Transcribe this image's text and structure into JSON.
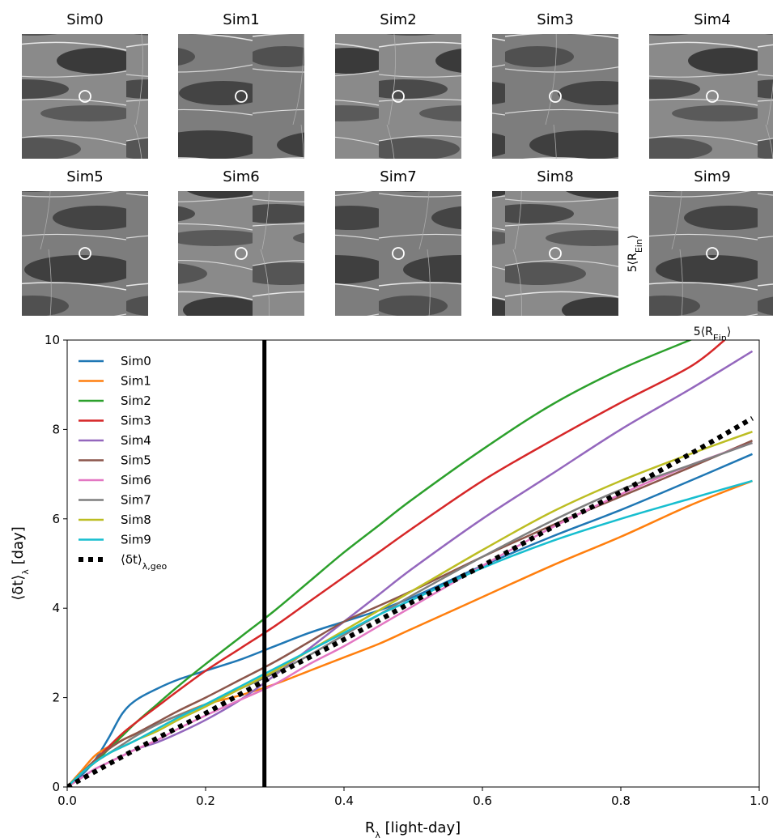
{
  "panels": {
    "titles": [
      "Sim0",
      "Sim1",
      "Sim2",
      "Sim3",
      "Sim4",
      "Sim5",
      "Sim6",
      "Sim7",
      "Sim8",
      "Sim9"
    ],
    "scale_label_vertical": "5⟨R_Ein⟩",
    "scale_label_horizontal": "5⟨R_Ein⟩"
  },
  "chart_data": {
    "type": "line",
    "xlabel": "R_λ [light-day]",
    "ylabel": "⟨δt⟩_λ [day]",
    "xlim": [
      0.0,
      1.0
    ],
    "ylim": [
      0,
      10
    ],
    "xticks": [
      "0.0",
      "0.2",
      "0.4",
      "0.6",
      "0.8",
      "1.0"
    ],
    "yticks": [
      "0",
      "2",
      "4",
      "6",
      "8",
      "10"
    ],
    "grid": false,
    "legend_position": "upper-left",
    "vline": {
      "x": 0.285,
      "color": "#000000"
    },
    "series": [
      {
        "name": "Sim0",
        "color": "#1f77b4",
        "x": [
          0,
          0.02,
          0.04,
          0.06,
          0.08,
          0.1,
          0.13,
          0.16,
          0.2,
          0.25,
          0.3,
          0.35,
          0.4,
          0.45,
          0.5,
          0.6,
          0.7,
          0.8,
          0.9,
          0.99
        ],
        "y": [
          0,
          0.25,
          0.6,
          1.1,
          1.65,
          1.95,
          2.2,
          2.4,
          2.6,
          2.85,
          3.15,
          3.45,
          3.7,
          3.95,
          4.25,
          4.95,
          5.6,
          6.2,
          6.85,
          7.45
        ]
      },
      {
        "name": "Sim1",
        "color": "#ff7f0e",
        "x": [
          0,
          0.02,
          0.04,
          0.06,
          0.08,
          0.1,
          0.13,
          0.16,
          0.2,
          0.25,
          0.3,
          0.35,
          0.4,
          0.45,
          0.5,
          0.6,
          0.7,
          0.8,
          0.9,
          0.99
        ],
        "y": [
          0,
          0.35,
          0.7,
          0.9,
          1.05,
          1.2,
          1.4,
          1.6,
          1.85,
          2.05,
          2.3,
          2.6,
          2.9,
          3.2,
          3.55,
          4.25,
          4.95,
          5.6,
          6.3,
          6.85
        ]
      },
      {
        "name": "Sim2",
        "color": "#2ca02c",
        "x": [
          0,
          0.02,
          0.04,
          0.06,
          0.08,
          0.1,
          0.13,
          0.16,
          0.2,
          0.25,
          0.3,
          0.35,
          0.4,
          0.45,
          0.5,
          0.6,
          0.7,
          0.8,
          0.9,
          0.9
        ],
        "y": [
          0,
          0.3,
          0.55,
          0.85,
          1.15,
          1.45,
          1.85,
          2.25,
          2.75,
          3.35,
          3.95,
          4.6,
          5.25,
          5.85,
          6.45,
          7.55,
          8.55,
          9.35,
          10,
          10
        ]
      },
      {
        "name": "Sim3",
        "color": "#d62728",
        "x": [
          0,
          0.02,
          0.04,
          0.06,
          0.08,
          0.1,
          0.13,
          0.16,
          0.2,
          0.25,
          0.3,
          0.35,
          0.4,
          0.45,
          0.5,
          0.6,
          0.7,
          0.8,
          0.9,
          0.95
        ],
        "y": [
          0,
          0.3,
          0.6,
          0.9,
          1.2,
          1.45,
          1.8,
          2.15,
          2.6,
          3.1,
          3.6,
          4.15,
          4.7,
          5.25,
          5.8,
          6.85,
          7.75,
          8.6,
          9.4,
          10
        ]
      },
      {
        "name": "Sim4",
        "color": "#9467bd",
        "x": [
          0,
          0.02,
          0.04,
          0.06,
          0.08,
          0.1,
          0.13,
          0.16,
          0.2,
          0.25,
          0.3,
          0.35,
          0.4,
          0.45,
          0.5,
          0.6,
          0.7,
          0.8,
          0.9,
          0.99
        ],
        "y": [
          0,
          0.2,
          0.4,
          0.55,
          0.7,
          0.85,
          1.0,
          1.2,
          1.5,
          1.95,
          2.5,
          3.1,
          3.7,
          4.3,
          4.9,
          6.0,
          7.0,
          8.0,
          8.9,
          9.75
        ]
      },
      {
        "name": "Sim5",
        "color": "#8c564b",
        "x": [
          0,
          0.02,
          0.04,
          0.06,
          0.08,
          0.1,
          0.13,
          0.16,
          0.2,
          0.25,
          0.3,
          0.35,
          0.4,
          0.45,
          0.5,
          0.6,
          0.7,
          0.8,
          0.9,
          0.99
        ],
        "y": [
          0,
          0.3,
          0.6,
          0.85,
          1.05,
          1.2,
          1.45,
          1.7,
          2.0,
          2.4,
          2.8,
          3.25,
          3.7,
          4.05,
          4.4,
          5.15,
          5.85,
          6.5,
          7.15,
          7.75
        ]
      },
      {
        "name": "Sim6",
        "color": "#e377c2",
        "x": [
          0,
          0.02,
          0.04,
          0.06,
          0.08,
          0.1,
          0.13,
          0.16,
          0.2,
          0.25,
          0.3,
          0.35,
          0.4,
          0.45,
          0.5,
          0.6,
          0.7,
          0.8,
          0.9,
          0.99
        ],
        "y": [
          0,
          0.2,
          0.4,
          0.55,
          0.7,
          0.85,
          1.05,
          1.3,
          1.6,
          1.95,
          2.3,
          2.75,
          3.15,
          3.6,
          4.05,
          4.95,
          5.8,
          6.55,
          7.2,
          7.7
        ]
      },
      {
        "name": "Sim7",
        "color": "#7f7f7f",
        "x": [
          0,
          0.02,
          0.04,
          0.06,
          0.08,
          0.1,
          0.13,
          0.16,
          0.2,
          0.25,
          0.3,
          0.35,
          0.4,
          0.45,
          0.5,
          0.6,
          0.7,
          0.8,
          0.9,
          0.99
        ],
        "y": [
          0,
          0.3,
          0.55,
          0.75,
          0.95,
          1.15,
          1.4,
          1.6,
          1.85,
          2.2,
          2.55,
          2.95,
          3.4,
          3.85,
          4.3,
          5.15,
          5.95,
          6.65,
          7.2,
          7.7
        ]
      },
      {
        "name": "Sim8",
        "color": "#bcbd22",
        "x": [
          0,
          0.02,
          0.04,
          0.06,
          0.08,
          0.1,
          0.13,
          0.16,
          0.2,
          0.25,
          0.3,
          0.35,
          0.4,
          0.45,
          0.5,
          0.6,
          0.7,
          0.8,
          0.9,
          0.99
        ],
        "y": [
          0,
          0.3,
          0.55,
          0.75,
          0.9,
          1.05,
          1.25,
          1.5,
          1.8,
          2.2,
          2.6,
          3.05,
          3.5,
          3.95,
          4.4,
          5.3,
          6.15,
          6.85,
          7.45,
          7.95
        ]
      },
      {
        "name": "Sim9",
        "color": "#17becf",
        "x": [
          0,
          0.02,
          0.04,
          0.06,
          0.08,
          0.1,
          0.13,
          0.16,
          0.2,
          0.25,
          0.3,
          0.35,
          0.4,
          0.45,
          0.5,
          0.6,
          0.7,
          0.8,
          0.9,
          0.99
        ],
        "y": [
          0,
          0.3,
          0.55,
          0.75,
          0.9,
          1.05,
          1.3,
          1.55,
          1.85,
          2.25,
          2.65,
          3.05,
          3.45,
          3.85,
          4.2,
          4.9,
          5.5,
          6.0,
          6.45,
          6.85
        ]
      },
      {
        "name": "⟨δt⟩_λ,geo",
        "color": "#000000",
        "dotted": true,
        "x": [
          0,
          0.1,
          0.2,
          0.3,
          0.4,
          0.5,
          0.6,
          0.7,
          0.8,
          0.9,
          0.99
        ],
        "y": [
          0,
          0.85,
          1.65,
          2.5,
          3.3,
          4.15,
          4.95,
          5.8,
          6.6,
          7.45,
          8.25
        ]
      }
    ]
  }
}
